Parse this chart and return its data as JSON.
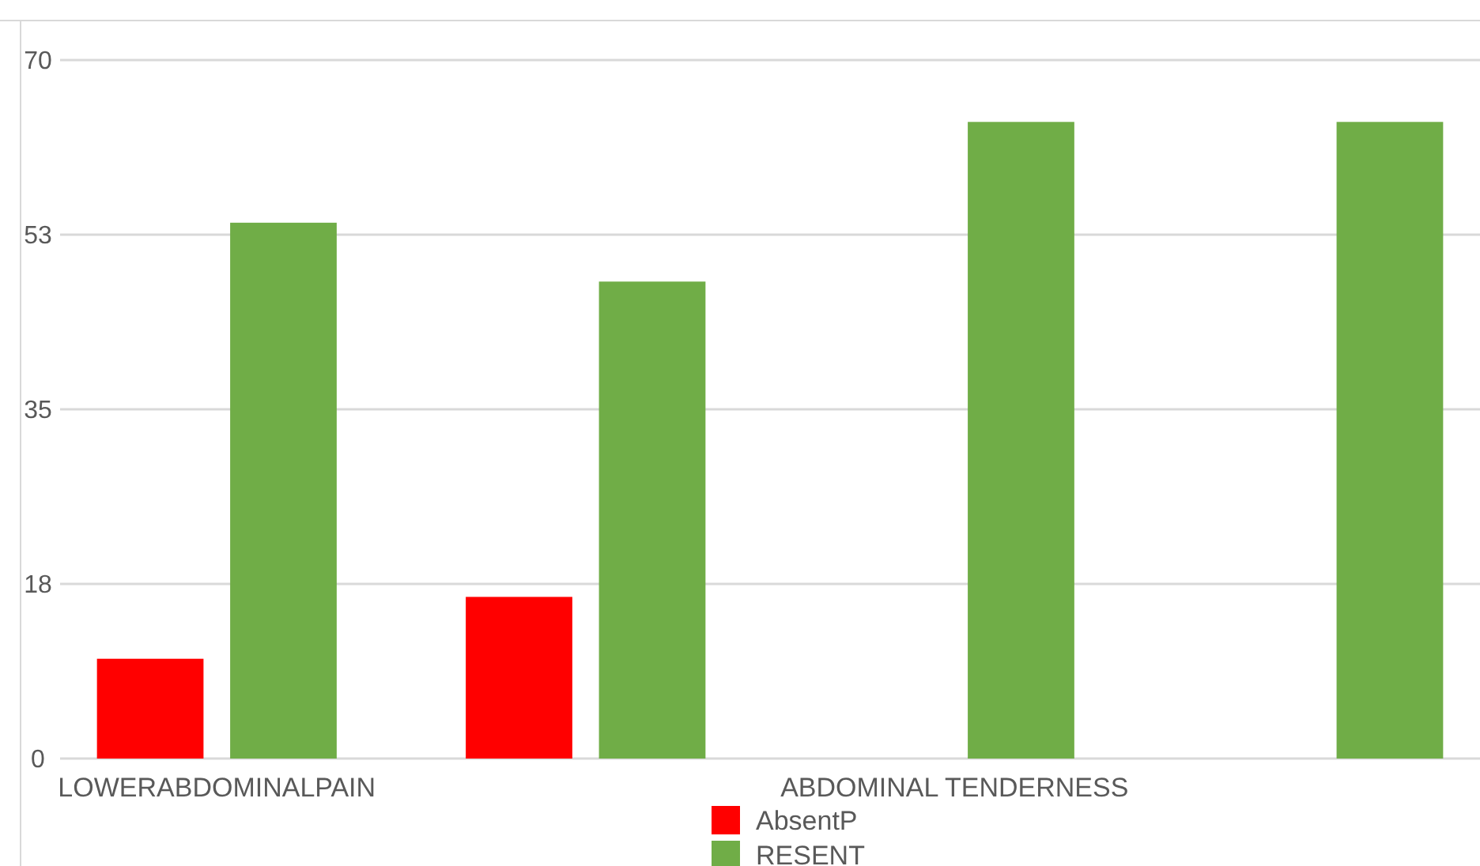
{
  "chart_data": {
    "type": "bar",
    "categories": [
      "LOWERABDOMINALPAIN",
      null,
      "ABDOMINAL TENDERNESS",
      null
    ],
    "series": [
      {
        "name": "AbsentP",
        "color": "#ff0000",
        "values": [
          10,
          16.2,
          null,
          null
        ]
      },
      {
        "name": "RESENT",
        "color": "#70ad47",
        "values": [
          53.7,
          47.8,
          63.8,
          63.8
        ]
      }
    ],
    "ylim": [
      0,
      70
    ],
    "yticks": [
      0,
      {
        "value": 17.5,
        "label": "18"
      },
      35,
      {
        "value": 52.5,
        "label": "53"
      },
      70
    ],
    "grid": "y",
    "legend": "bottom"
  }
}
